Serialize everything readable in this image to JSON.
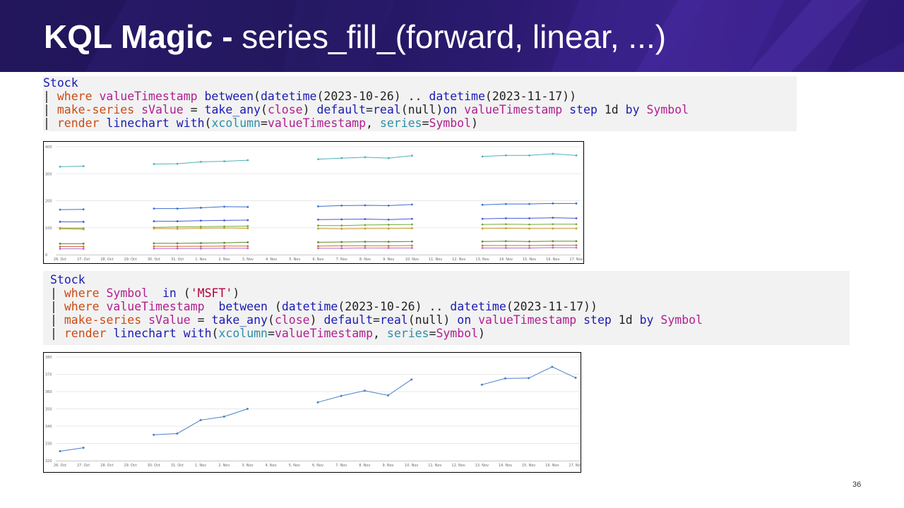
{
  "slide": {
    "title_bold": "KQL Magic -",
    "title_rest": " series_fill_(forward, linear, ...)",
    "page_number": "36"
  },
  "query1": {
    "lines": [
      [
        [
          "kw",
          "Stock"
        ]
      ],
      [
        [
          "pl",
          "| "
        ],
        [
          "op",
          "where "
        ],
        [
          "col",
          "valueTimestamp "
        ],
        [
          "kw",
          "between"
        ],
        [
          "pl",
          "("
        ],
        [
          "kw",
          "datetime"
        ],
        [
          "pl",
          "(2023-10-26) .. "
        ],
        [
          "kw",
          "datetime"
        ],
        [
          "pl",
          "(2023-11-17))"
        ]
      ],
      [
        [
          "pl",
          "| "
        ],
        [
          "op",
          "make-series "
        ],
        [
          "col",
          "sValue "
        ],
        [
          "pl",
          "= "
        ],
        [
          "kw",
          "take_any"
        ],
        [
          "pl",
          "("
        ],
        [
          "col",
          "close"
        ],
        [
          "pl",
          ") "
        ],
        [
          "kw",
          "default"
        ],
        [
          "pl",
          "="
        ],
        [
          "kw",
          "real"
        ],
        [
          "pl",
          "(null)"
        ],
        [
          "kw",
          "on "
        ],
        [
          "col",
          "valueTimestamp "
        ],
        [
          "kw",
          "step "
        ],
        [
          "pl",
          "1d "
        ],
        [
          "kw",
          "by "
        ],
        [
          "col",
          "Symbol"
        ]
      ],
      [
        [
          "pl",
          "| "
        ],
        [
          "op",
          "render "
        ],
        [
          "kw",
          "linechart "
        ],
        [
          "kw",
          "with"
        ],
        [
          "pl",
          "("
        ],
        [
          "par",
          "xcolumn"
        ],
        [
          "pl",
          "="
        ],
        [
          "col",
          "valueTimestamp"
        ],
        [
          "pl",
          ", "
        ],
        [
          "par",
          "series"
        ],
        [
          "pl",
          "="
        ],
        [
          "col",
          "Symbol"
        ],
        [
          "pl",
          ")"
        ]
      ]
    ]
  },
  "query2": {
    "lines": [
      [
        [
          "kw",
          "Stock"
        ]
      ],
      [
        [
          "pl",
          "| "
        ],
        [
          "op",
          "where "
        ],
        [
          "col",
          "Symbol  "
        ],
        [
          "kw",
          "in "
        ],
        [
          "pl",
          "("
        ],
        [
          "str",
          "'MSFT'"
        ],
        [
          "pl",
          ")"
        ]
      ],
      [
        [
          "pl",
          "| "
        ],
        [
          "op",
          "where "
        ],
        [
          "col",
          "valueTimestamp  "
        ],
        [
          "kw",
          "between "
        ],
        [
          "pl",
          "("
        ],
        [
          "kw",
          "datetime"
        ],
        [
          "pl",
          "(2023-10-26) .. "
        ],
        [
          "kw",
          "datetime"
        ],
        [
          "pl",
          "(2023-11-17))"
        ]
      ],
      [
        [
          "pl",
          "| "
        ],
        [
          "op",
          "make-series "
        ],
        [
          "col",
          "sValue "
        ],
        [
          "pl",
          "= "
        ],
        [
          "kw",
          "take_any"
        ],
        [
          "pl",
          "("
        ],
        [
          "col",
          "close"
        ],
        [
          "pl",
          ") "
        ],
        [
          "kw",
          "default"
        ],
        [
          "pl",
          "="
        ],
        [
          "kw",
          "real"
        ],
        [
          "pl",
          "(null) "
        ],
        [
          "kw",
          "on "
        ],
        [
          "col",
          "valueTimestamp "
        ],
        [
          "kw",
          "step "
        ],
        [
          "pl",
          "1d "
        ],
        [
          "kw",
          "by "
        ],
        [
          "col",
          "Symbol"
        ]
      ],
      [
        [
          "pl",
          "| "
        ],
        [
          "op",
          "render "
        ],
        [
          "kw",
          "linechart "
        ],
        [
          "kw",
          "with"
        ],
        [
          "pl",
          "("
        ],
        [
          "par",
          "xcolumn"
        ],
        [
          "pl",
          "="
        ],
        [
          "col",
          "valueTimestamp"
        ],
        [
          "pl",
          ", "
        ],
        [
          "par",
          "series"
        ],
        [
          "pl",
          "="
        ],
        [
          "col",
          "Symbol"
        ],
        [
          "pl",
          ")"
        ]
      ]
    ]
  },
  "chart_data": [
    {
      "type": "line",
      "x": [
        "26. Oct",
        "27. Oct",
        "28. Oct",
        "29. Oct",
        "30. Oct",
        "31. Oct",
        "1. Nov",
        "2. Nov",
        "3. Nov",
        "4. Nov",
        "5. Nov",
        "6. Nov",
        "7. Nov",
        "8. Nov",
        "9. Nov",
        "10. Nov",
        "11. Nov",
        "12. Nov",
        "13. Nov",
        "14. Nov",
        "15. Nov",
        "16. Nov",
        "17. Nov"
      ],
      "ylim": [
        0,
        400
      ],
      "yticks": [
        0,
        100,
        200,
        300,
        400
      ],
      "grid": true,
      "series": [
        {
          "color": "#4fb3b8",
          "values": [
            326,
            328,
            null,
            null,
            336,
            337,
            344,
            346,
            350,
            null,
            null,
            354,
            358,
            361,
            358,
            367,
            null,
            null,
            364,
            368,
            368,
            374,
            368
          ]
        },
        {
          "color": "#3d6fce",
          "values": [
            167,
            168,
            null,
            null,
            171,
            171,
            174,
            178,
            177,
            null,
            null,
            179,
            182,
            183,
            182,
            186,
            null,
            null,
            185,
            188,
            188,
            190,
            190
          ]
        },
        {
          "color": "#4a5ad6",
          "values": [
            122,
            122,
            null,
            null,
            124,
            124,
            126,
            127,
            128,
            null,
            null,
            130,
            131,
            132,
            130,
            133,
            null,
            null,
            133,
            135,
            135,
            137,
            135
          ]
        },
        {
          "color": "#7aa83a",
          "values": [
            99,
            98,
            null,
            null,
            101,
            103,
            104,
            105,
            106,
            null,
            null,
            108,
            108,
            110,
            111,
            112,
            null,
            null,
            112,
            113,
            112,
            113,
            113
          ]
        },
        {
          "color": "#c99a2e",
          "values": [
            96,
            94,
            null,
            null,
            97,
            96,
            98,
            99,
            98,
            null,
            null,
            97,
            96,
            97,
            97,
            98,
            null,
            null,
            97,
            98,
            97,
            97,
            97
          ]
        },
        {
          "color": "#5a8a2a",
          "values": [
            41,
            41,
            null,
            null,
            42,
            42,
            43,
            44,
            46,
            null,
            null,
            46,
            47,
            48,
            48,
            49,
            null,
            null,
            49,
            50,
            49,
            50,
            50
          ]
        },
        {
          "color": "#d46a3a",
          "values": [
            30,
            30,
            null,
            null,
            31,
            31,
            31,
            32,
            32,
            null,
            null,
            32,
            33,
            33,
            33,
            34,
            null,
            null,
            34,
            34,
            34,
            35,
            35
          ]
        },
        {
          "color": "#b06ad0",
          "values": [
            22,
            22,
            null,
            null,
            23,
            23,
            23,
            24,
            24,
            null,
            null,
            24,
            24,
            25,
            25,
            25,
            null,
            null,
            25,
            25,
            25,
            26,
            26
          ]
        }
      ]
    },
    {
      "type": "line",
      "x": [
        "26. Oct",
        "27. Oct",
        "28. Oct",
        "29. Oct",
        "30. Oct",
        "31. Oct",
        "1. Nov",
        "2. Nov",
        "3. Nov",
        "4. Nov",
        "5. Nov",
        "6. Nov",
        "7. Nov",
        "8. Nov",
        "9. Nov",
        "10. Nov",
        "11. Nov",
        "12. Nov",
        "13. Nov",
        "14. Nov",
        "15. Nov",
        "16. Nov",
        "17. Nov"
      ],
      "ylim": [
        320,
        380
      ],
      "yticks": [
        320,
        330,
        340,
        350,
        360,
        370,
        380
      ],
      "grid": true,
      "series": [
        {
          "color": "#4a7fc8",
          "values": [
            325.5,
            327.5,
            null,
            null,
            335,
            335.7,
            343.5,
            345.5,
            350,
            null,
            null,
            353.8,
            357.5,
            360.5,
            357.8,
            367,
            null,
            null,
            364,
            367.6,
            367.8,
            374.3,
            368
          ]
        }
      ]
    }
  ]
}
